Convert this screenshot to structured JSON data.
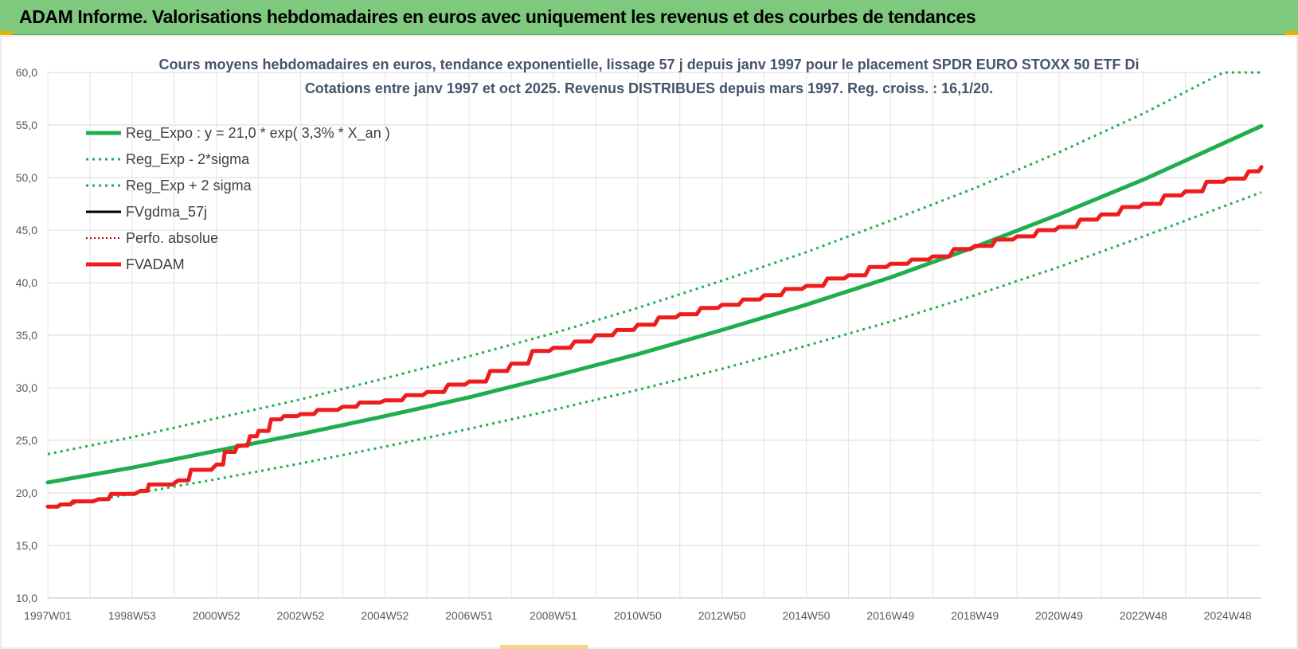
{
  "banner": {
    "text": "ADAM Informe. Valorisations hebdomadaires en euros avec uniquement les revenus et des courbes de tendances",
    "color": "#7fc97f"
  },
  "chart_data": {
    "type": "line",
    "title": "Cours moyens hebdomadaires en euros, tendance exponentielle, lissage 57 j depuis janv 1997 pour le placement SPDR EURO STOXX 50 ETF Di",
    "subtitle": "Cotations entre janv 1997 et oct 2025. Revenus DISTRIBUES depuis mars 1997. Reg. croiss. : 16,1/20.",
    "xlabel": "",
    "ylabel": "",
    "ylim": [
      10,
      60
    ],
    "yticks": [
      "10,0",
      "15,0",
      "20,0",
      "25,0",
      "30,0",
      "35,0",
      "40,0",
      "45,0",
      "50,0",
      "55,0",
      "60,0"
    ],
    "xlim": [
      1997.0,
      2025.8
    ],
    "xtick_labels": [
      "1997W01",
      "1998W53",
      "2000W52",
      "2002W52",
      "2004W52",
      "2006W51",
      "2008W51",
      "2010W50",
      "2012W50",
      "2014W50",
      "2016W49",
      "2018W49",
      "2020W49",
      "2022W48",
      "2024W48"
    ],
    "xtick_years": [
      1997.0,
      1999.0,
      2001.0,
      2003.0,
      2005.0,
      2007.0,
      2009.0,
      2011.0,
      2013.0,
      2015.0,
      2017.0,
      2019.0,
      2021.0,
      2023.0,
      2025.0
    ],
    "grid": true,
    "legend_position": "top-left",
    "series": [
      {
        "name": "Reg_Expo : y = 21,0 * exp( 3,3% *  X_an )",
        "color": "#1fae4d",
        "style": "solid",
        "width": 5,
        "x": [
          1997.0,
          1999.0,
          2001.0,
          2003.0,
          2005.0,
          2007.0,
          2009.0,
          2011.0,
          2013.0,
          2015.0,
          2017.0,
          2019.0,
          2021.0,
          2023.0,
          2025.8
        ],
        "values": [
          21.0,
          22.4,
          24.0,
          25.6,
          27.3,
          29.1,
          31.1,
          33.2,
          35.5,
          37.9,
          40.5,
          43.4,
          46.5,
          49.8,
          54.9
        ]
      },
      {
        "name": "Reg_Exp - 2*sigma",
        "color": "#1fae4d",
        "style": "dotted",
        "width": 3,
        "x": [
          1997.0,
          1999.0,
          2001.0,
          2003.0,
          2005.0,
          2007.0,
          2009.0,
          2011.0,
          2013.0,
          2015.0,
          2017.0,
          2019.0,
          2021.0,
          2023.0,
          2025.8
        ],
        "values": [
          18.6,
          19.9,
          21.3,
          22.8,
          24.4,
          26.1,
          27.9,
          29.8,
          31.8,
          34.0,
          36.3,
          38.8,
          41.5,
          44.4,
          48.6
        ]
      },
      {
        "name": "Reg_Exp + 2 sigma",
        "color": "#1fae4d",
        "style": "dotted",
        "width": 3,
        "x": [
          1997.0,
          1999.0,
          2001.0,
          2003.0,
          2005.0,
          2007.0,
          2009.0,
          2011.0,
          2013.0,
          2015.0,
          2017.0,
          2019.0,
          2021.0,
          2023.0,
          2024.9,
          2025.8
        ],
        "values": [
          23.7,
          25.3,
          27.1,
          28.9,
          30.9,
          33.0,
          35.2,
          37.6,
          40.2,
          42.9,
          45.9,
          49.0,
          52.4,
          56.1,
          60.0,
          60.0
        ]
      },
      {
        "name": "FVgdma_57j",
        "color": "#000000",
        "style": "solid",
        "width": 3,
        "x": [
          1997.0,
          1997.3,
          1997.6,
          1998.2,
          1998.5,
          1999.2,
          1999.4,
          2000.1,
          2000.4,
          2001.0,
          2001.2,
          2001.5,
          2001.8,
          2002.0,
          2002.3,
          2002.6,
          2003.0,
          2003.4,
          2004.0,
          2004.4,
          2005.0,
          2005.5,
          2006.0,
          2006.5,
          2007.0,
          2007.5,
          2008.0,
          2008.5,
          2009.0,
          2009.5,
          2010.0,
          2010.5,
          2011.0,
          2011.5,
          2012.0,
          2012.5,
          2013.0,
          2013.5,
          2014.0,
          2014.5,
          2015.0,
          2015.5,
          2016.0,
          2016.5,
          2017.0,
          2017.5,
          2018.0,
          2018.5,
          2019.0,
          2019.5,
          2020.0,
          2020.5,
          2021.0,
          2021.5,
          2022.0,
          2022.5,
          2023.0,
          2023.5,
          2024.0,
          2024.5,
          2025.0,
          2025.5,
          2025.8
        ],
        "values": [
          18.7,
          18.9,
          19.2,
          19.4,
          19.9,
          20.2,
          20.8,
          21.2,
          22.2,
          22.7,
          23.9,
          24.5,
          25.4,
          25.9,
          27.0,
          27.3,
          27.5,
          27.9,
          28.2,
          28.6,
          28.8,
          29.3,
          29.6,
          30.3,
          30.6,
          31.6,
          32.3,
          33.5,
          33.8,
          34.4,
          35.0,
          35.5,
          36.0,
          36.7,
          37.0,
          37.6,
          37.9,
          38.4,
          38.8,
          39.4,
          39.7,
          40.4,
          40.7,
          41.5,
          41.8,
          42.2,
          42.5,
          43.2,
          43.5,
          44.1,
          44.4,
          45.0,
          45.3,
          46.0,
          46.5,
          47.2,
          47.5,
          48.3,
          48.7,
          49.6,
          49.9,
          50.6,
          51.0
        ]
      },
      {
        "name": "Perfo. absolue",
        "color": "#c00000",
        "style": "dotted",
        "width": 2,
        "x": [
          1997.0,
          1997.3,
          1997.6,
          1998.2,
          1998.5,
          1999.2,
          1999.4,
          2000.1,
          2000.4,
          2001.0,
          2001.2,
          2001.5,
          2001.8,
          2002.0,
          2002.3,
          2002.6,
          2003.0,
          2003.4,
          2004.0,
          2004.4,
          2005.0,
          2005.5,
          2006.0,
          2006.5,
          2007.0,
          2007.5,
          2008.0,
          2008.5,
          2009.0,
          2009.5,
          2010.0,
          2010.5,
          2011.0,
          2011.5,
          2012.0,
          2012.5,
          2013.0,
          2013.5,
          2014.0,
          2014.5,
          2015.0,
          2015.5,
          2016.0,
          2016.5,
          2017.0,
          2017.5,
          2018.0,
          2018.5,
          2019.0,
          2019.5,
          2020.0,
          2020.5,
          2021.0,
          2021.5,
          2022.0,
          2022.5,
          2023.0,
          2023.5,
          2024.0,
          2024.5,
          2025.0,
          2025.5,
          2025.8
        ],
        "values": [
          18.7,
          18.9,
          19.2,
          19.4,
          19.9,
          20.2,
          20.8,
          21.2,
          22.2,
          22.7,
          23.9,
          24.5,
          25.4,
          25.9,
          27.0,
          27.3,
          27.5,
          27.9,
          28.2,
          28.6,
          28.8,
          29.3,
          29.6,
          30.3,
          30.6,
          31.6,
          32.3,
          33.5,
          33.8,
          34.4,
          35.0,
          35.5,
          36.0,
          36.7,
          37.0,
          37.6,
          37.9,
          38.4,
          38.8,
          39.4,
          39.7,
          40.4,
          40.7,
          41.5,
          41.8,
          42.2,
          42.5,
          43.2,
          43.5,
          44.1,
          44.4,
          45.0,
          45.3,
          46.0,
          46.5,
          47.2,
          47.5,
          48.3,
          48.7,
          49.6,
          49.9,
          50.6,
          51.0
        ]
      },
      {
        "name": "FVADAM",
        "color": "#ee1c1c",
        "style": "solid",
        "width": 5,
        "x": [
          1997.0,
          1997.3,
          1997.6,
          1998.2,
          1998.5,
          1999.2,
          1999.4,
          2000.1,
          2000.4,
          2001.0,
          2001.2,
          2001.5,
          2001.8,
          2002.0,
          2002.3,
          2002.6,
          2003.0,
          2003.4,
          2004.0,
          2004.4,
          2005.0,
          2005.5,
          2006.0,
          2006.5,
          2007.0,
          2007.5,
          2008.0,
          2008.5,
          2009.0,
          2009.5,
          2010.0,
          2010.5,
          2011.0,
          2011.5,
          2012.0,
          2012.5,
          2013.0,
          2013.5,
          2014.0,
          2014.5,
          2015.0,
          2015.5,
          2016.0,
          2016.5,
          2017.0,
          2017.5,
          2018.0,
          2018.5,
          2019.0,
          2019.5,
          2020.0,
          2020.5,
          2021.0,
          2021.5,
          2022.0,
          2022.5,
          2023.0,
          2023.5,
          2024.0,
          2024.5,
          2025.0,
          2025.5,
          2025.8
        ],
        "values": [
          18.7,
          18.9,
          19.2,
          19.4,
          19.9,
          20.2,
          20.8,
          21.2,
          22.2,
          22.7,
          23.9,
          24.5,
          25.4,
          25.9,
          27.0,
          27.3,
          27.5,
          27.9,
          28.2,
          28.6,
          28.8,
          29.3,
          29.6,
          30.3,
          30.6,
          31.6,
          32.3,
          33.5,
          33.8,
          34.4,
          35.0,
          35.5,
          36.0,
          36.7,
          37.0,
          37.6,
          37.9,
          38.4,
          38.8,
          39.4,
          39.7,
          40.4,
          40.7,
          41.5,
          41.8,
          42.2,
          42.5,
          43.2,
          43.5,
          44.1,
          44.4,
          45.0,
          45.3,
          46.0,
          46.5,
          47.2,
          47.5,
          48.3,
          48.7,
          49.6,
          49.9,
          50.6,
          51.0
        ]
      }
    ]
  }
}
